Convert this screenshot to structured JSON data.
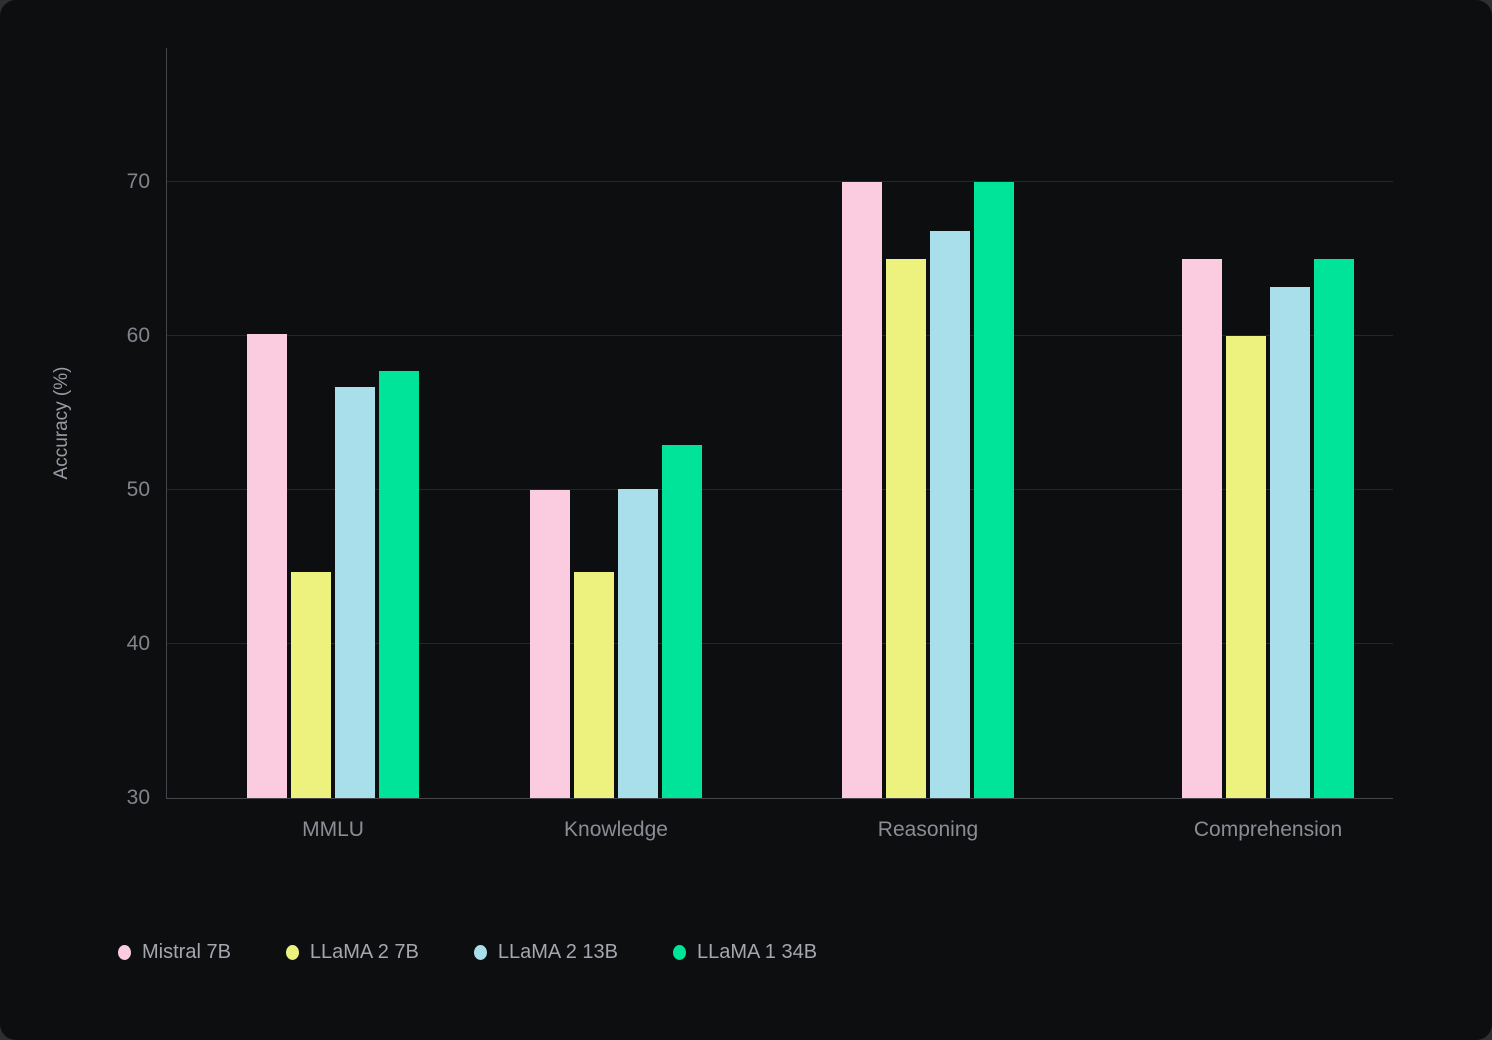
{
  "chart_data": {
    "type": "bar",
    "title": "",
    "ylabel": "Accuracy (%)",
    "xlabel": "",
    "categories": [
      "MMLU",
      "Knowledge",
      "Reasoning",
      "Comprehension"
    ],
    "series": [
      {
        "name": "Mistral 7B",
        "color": "#fbcbdf",
        "values": [
          60.1,
          50.0,
          70.0,
          65.0
        ]
      },
      {
        "name": "LLaMA 2 7B",
        "color": "#edf17e",
        "values": [
          44.7,
          44.7,
          65.0,
          60.0
        ]
      },
      {
        "name": "LLaMA 2 13B",
        "color": "#a9deeb",
        "values": [
          56.7,
          50.1,
          66.8,
          63.2
        ]
      },
      {
        "name": "LLaMA 1 34B",
        "color": "#00e49a",
        "values": [
          57.7,
          52.9,
          70.0,
          65.0
        ]
      }
    ],
    "y_ticks": [
      30,
      40,
      50,
      60,
      70
    ],
    "ylim": [
      30,
      78.7
    ],
    "grid": true,
    "legend_position": "bottom-left",
    "theme": {
      "background": "#0d0e10",
      "gridline_color": "#26272b",
      "axis_color": "#45464b",
      "tick_label_color": "#83848b",
      "category_label_color": "#8c8d94",
      "legend_label_color": "#a5a6ae",
      "axis_title_color": "#9a9ba2"
    }
  }
}
